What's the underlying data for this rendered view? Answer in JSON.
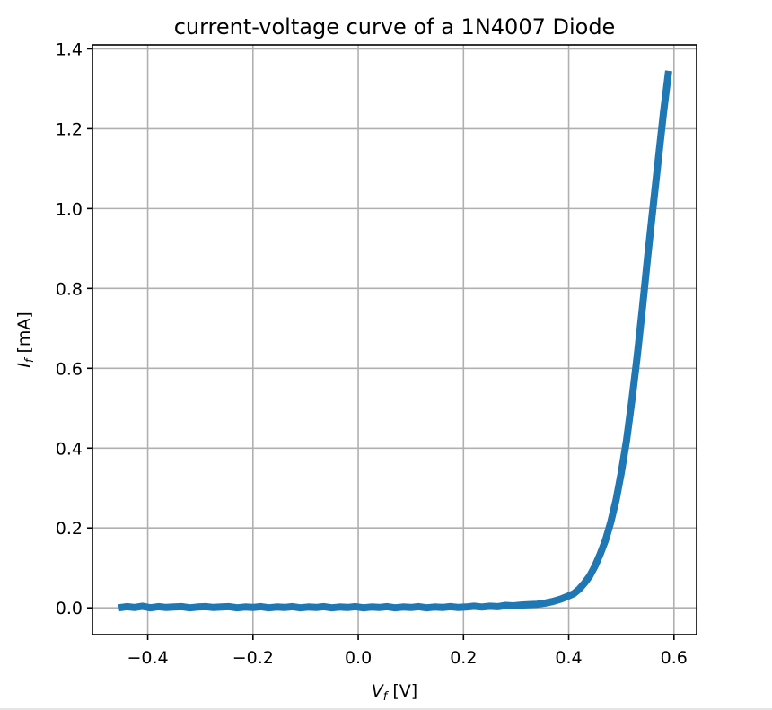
{
  "chart_data": {
    "type": "line",
    "title": "current-voltage curve of a 1N4007 Diode",
    "xlabel_symbol": "V",
    "xlabel_sub": "f",
    "xlabel_unit": " [V]",
    "ylabel_symbol": "I",
    "ylabel_sub": "f",
    "ylabel_unit": " [mA]",
    "xlim": [
      -0.505,
      0.643
    ],
    "ylim": [
      -0.067,
      1.41
    ],
    "grid": true,
    "line_color": "#1f77b4",
    "x_ticks": [
      -0.4,
      -0.2,
      0.0,
      0.2,
      0.4,
      0.6
    ],
    "x_tick_labels": [
      "−0.4",
      "−0.2",
      "0.0",
      "0.2",
      "0.4",
      "0.6"
    ],
    "y_ticks": [
      0.0,
      0.2,
      0.4,
      0.6,
      0.8,
      1.0,
      1.2,
      1.4
    ],
    "y_tick_labels": [
      "0.0",
      "0.2",
      "0.4",
      "0.6",
      "0.8",
      "1.0",
      "1.2",
      "1.4"
    ],
    "series": [
      {
        "x": [
          -0.455,
          -0.44,
          -0.425,
          -0.41,
          -0.395,
          -0.38,
          -0.365,
          -0.35,
          -0.335,
          -0.32,
          -0.305,
          -0.29,
          -0.275,
          -0.26,
          -0.245,
          -0.23,
          -0.215,
          -0.2,
          -0.185,
          -0.17,
          -0.155,
          -0.14,
          -0.125,
          -0.11,
          -0.095,
          -0.08,
          -0.065,
          -0.05,
          -0.035,
          -0.02,
          -0.005,
          0.01,
          0.025,
          0.04,
          0.055,
          0.07,
          0.085,
          0.1,
          0.115,
          0.13,
          0.145,
          0.16,
          0.175,
          0.19,
          0.205,
          0.22,
          0.235,
          0.25,
          0.265,
          0.28,
          0.295,
          0.31,
          0.325,
          0.34,
          0.355,
          0.37,
          0.385,
          0.4,
          0.41,
          0.42,
          0.43,
          0.44,
          0.45,
          0.46,
          0.47,
          0.48,
          0.49,
          0.5,
          0.51,
          0.52,
          0.53,
          0.54,
          0.55,
          0.56,
          0.57,
          0.58,
          0.59
        ],
        "y": [
          0.0,
          0.003,
          0.001,
          0.004,
          0.0,
          0.003,
          0.001,
          0.002,
          0.003,
          0.0,
          0.002,
          0.003,
          0.001,
          0.002,
          0.003,
          0.0,
          0.002,
          0.001,
          0.003,
          0.0,
          0.002,
          0.001,
          0.003,
          0.0,
          0.002,
          0.001,
          0.003,
          0.0,
          0.002,
          0.001,
          0.003,
          0.0,
          0.002,
          0.001,
          0.003,
          0.0,
          0.002,
          0.001,
          0.003,
          0.0,
          0.002,
          0.001,
          0.003,
          0.001,
          0.002,
          0.004,
          0.002,
          0.004,
          0.003,
          0.006,
          0.005,
          0.007,
          0.008,
          0.009,
          0.012,
          0.016,
          0.022,
          0.03,
          0.036,
          0.047,
          0.062,
          0.08,
          0.105,
          0.135,
          0.17,
          0.215,
          0.27,
          0.34,
          0.42,
          0.52,
          0.63,
          0.75,
          0.88,
          1.0,
          1.12,
          1.24,
          1.345
        ]
      }
    ]
  }
}
